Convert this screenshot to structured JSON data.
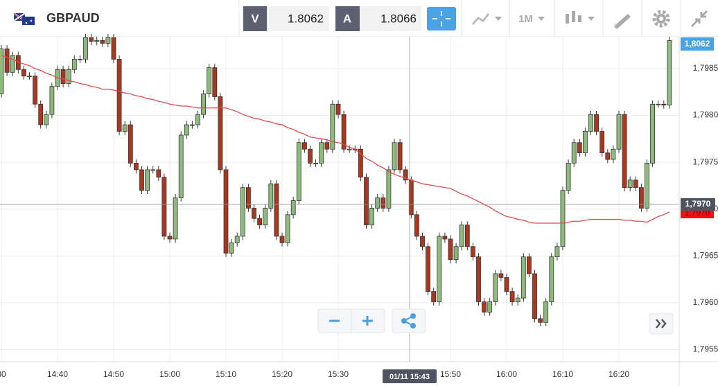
{
  "toolbar": {
    "symbol": "GBPAUD",
    "bid_tag": "V",
    "bid": "1.8062",
    "ask_tag": "A",
    "ask": "1.8066",
    "interval": "1M"
  },
  "price_tags": {
    "top": "1,8062",
    "current": "1,7970"
  },
  "chart_data": {
    "type": "candlestick",
    "categories": [
      "30",
      null,
      null,
      null,
      null,
      null,
      null,
      null,
      null,
      null,
      "14:40",
      null,
      null,
      null,
      null,
      null,
      null,
      null,
      null,
      null,
      "14:50",
      null,
      null,
      null,
      null,
      null,
      null,
      null,
      null,
      null,
      "15:00",
      null,
      null,
      null,
      null,
      null,
      null,
      null,
      null,
      null,
      "15:10",
      null,
      null,
      null,
      null,
      null,
      null,
      null,
      null,
      null,
      "15:20",
      null,
      null,
      null,
      null,
      null,
      null,
      null,
      null,
      null,
      "15:30",
      null,
      null,
      null,
      null,
      null,
      null,
      null,
      null,
      null,
      null,
      null,
      null,
      null,
      null,
      null,
      null,
      null,
      null,
      null,
      "15:50",
      null,
      null,
      null,
      null,
      null,
      null,
      null,
      null,
      null,
      "16:00",
      null,
      null,
      null,
      null,
      null,
      null,
      null,
      null,
      null,
      "16:10",
      null,
      null,
      null,
      null,
      null,
      null,
      null,
      null,
      null,
      "16:20",
      null,
      null,
      null,
      null,
      null,
      null,
      null,
      null,
      null
    ],
    "open": [
      1.79823,
      1.79871,
      1.79846,
      1.79864,
      1.79849,
      1.79842,
      1.79842,
      1.79812,
      1.7979,
      1.79801,
      1.79831,
      1.79849,
      1.79834,
      1.79849,
      1.7986,
      1.7986,
      1.79883,
      1.79879,
      1.7988,
      1.79877,
      1.79883,
      1.7986,
      1.79783,
      1.7979,
      1.79749,
      1.79742,
      1.7972,
      1.79742,
      1.79742,
      1.79734,
      1.79671,
      1.79668,
      1.79712,
      1.79779,
      1.7979,
      1.7979,
      1.79801,
      1.79823,
      1.79851,
      1.7982,
      1.79742,
      1.79653,
      1.79664,
      1.79671,
      1.79723,
      1.79701,
      1.7969,
      1.79683,
      1.79701,
      1.79727,
      1.79671,
      1.79664,
      1.79694,
      1.79709,
      1.79771,
      1.79764,
      1.79749,
      1.79749,
      1.79771,
      1.79764,
      1.79812,
      1.79801,
      1.79764,
      1.79764,
      1.79764,
      1.79734,
      1.79683,
      1.79701,
      1.79712,
      1.79701,
      1.79742,
      1.79771,
      1.79742,
      1.79731,
      1.79694,
      1.79671,
      1.7966,
      1.79612,
      1.79601,
      1.79671,
      1.79668,
      1.79646,
      1.7966,
      1.79683,
      1.7966,
      1.79649,
      1.79601,
      1.7959,
      1.79601,
      1.79631,
      1.79627,
      1.79612,
      1.79601,
      1.79605,
      1.79649,
      1.79631,
      1.79583,
      1.79579,
      1.79601,
      1.79649,
      1.7966,
      1.7972,
      1.79749,
      1.79771,
      1.7976,
      1.79783,
      1.79801,
      1.79783,
      1.7976,
      1.79753,
      1.79764,
      1.79801,
      1.79723,
      1.79731,
      1.79723,
      1.79701,
      1.79749,
      1.79812,
      1.79812,
      1.79811
    ],
    "high": [
      1.79875,
      1.79875,
      1.79868,
      1.79868,
      1.79853,
      1.79846,
      1.79846,
      1.79816,
      1.79805,
      1.79835,
      1.79853,
      1.79853,
      1.79853,
      1.79864,
      1.79864,
      1.79887,
      1.79887,
      1.79884,
      1.79884,
      1.79887,
      1.79887,
      1.79864,
      1.79794,
      1.79794,
      1.79753,
      1.79746,
      1.79746,
      1.79746,
      1.79746,
      1.79738,
      1.79675,
      1.79716,
      1.79783,
      1.79794,
      1.79794,
      1.79805,
      1.79827,
      1.79855,
      1.79855,
      1.79824,
      1.79746,
      1.79668,
      1.79675,
      1.79727,
      1.79727,
      1.79705,
      1.79694,
      1.79705,
      1.79731,
      1.79731,
      1.79675,
      1.79698,
      1.79713,
      1.79775,
      1.79775,
      1.79768,
      1.79753,
      1.79775,
      1.79775,
      1.79816,
      1.79816,
      1.79805,
      1.79768,
      1.79768,
      1.79768,
      1.79738,
      1.79705,
      1.79716,
      1.79716,
      1.79746,
      1.79775,
      1.79775,
      1.79746,
      1.79735,
      1.79698,
      1.79675,
      1.79664,
      1.79616,
      1.79675,
      1.79675,
      1.79672,
      1.79664,
      1.79687,
      1.79687,
      1.79664,
      1.79653,
      1.79605,
      1.79605,
      1.79635,
      1.79635,
      1.79631,
      1.79616,
      1.79609,
      1.79653,
      1.79653,
      1.79635,
      1.79587,
      1.79605,
      1.79653,
      1.79664,
      1.79724,
      1.79753,
      1.79775,
      1.79775,
      1.79787,
      1.79805,
      1.79805,
      1.79787,
      1.79764,
      1.79768,
      1.79805,
      1.79805,
      1.79735,
      1.79735,
      1.79727,
      1.79753,
      1.79816,
      1.79816,
      1.79816,
      1.79884
    ],
    "low": [
      1.79819,
      1.79842,
      1.79842,
      1.79845,
      1.79838,
      1.79838,
      1.79808,
      1.79786,
      1.79786,
      1.79797,
      1.79827,
      1.7983,
      1.7983,
      1.79845,
      1.79856,
      1.79856,
      1.79875,
      1.79875,
      1.79873,
      1.79873,
      1.79856,
      1.79779,
      1.79779,
      1.79745,
      1.79738,
      1.79716,
      1.79716,
      1.79738,
      1.7973,
      1.79667,
      1.79664,
      1.79664,
      1.79708,
      1.79775,
      1.79786,
      1.79786,
      1.79797,
      1.79819,
      1.79816,
      1.79738,
      1.79649,
      1.79649,
      1.7966,
      1.79667,
      1.79697,
      1.79686,
      1.79679,
      1.79679,
      1.79697,
      1.79667,
      1.7966,
      1.7966,
      1.7969,
      1.79705,
      1.7976,
      1.79745,
      1.79745,
      1.79745,
      1.7976,
      1.7976,
      1.79797,
      1.7976,
      1.7976,
      1.7976,
      1.7973,
      1.79679,
      1.79679,
      1.79697,
      1.79697,
      1.79697,
      1.79738,
      1.79738,
      1.79727,
      1.7969,
      1.79667,
      1.79656,
      1.79608,
      1.79597,
      1.79597,
      1.79664,
      1.79642,
      1.79642,
      1.79656,
      1.79656,
      1.79645,
      1.79597,
      1.79586,
      1.79586,
      1.79597,
      1.79623,
      1.79608,
      1.79597,
      1.79597,
      1.79601,
      1.79627,
      1.79579,
      1.79575,
      1.79575,
      1.79597,
      1.79645,
      1.79656,
      1.79716,
      1.79745,
      1.79756,
      1.79756,
      1.79779,
      1.79779,
      1.79756,
      1.79749,
      1.79749,
      1.7976,
      1.79719,
      1.79719,
      1.79719,
      1.79697,
      1.79697,
      1.79745,
      1.79808,
      1.79807,
      1.79807
    ],
    "close": [
      1.79871,
      1.79846,
      1.79864,
      1.79849,
      1.79842,
      1.79842,
      1.79812,
      1.7979,
      1.79801,
      1.79831,
      1.79849,
      1.79834,
      1.79849,
      1.7986,
      1.7986,
      1.79883,
      1.79879,
      1.7988,
      1.79877,
      1.79883,
      1.7986,
      1.79783,
      1.7979,
      1.79749,
      1.79742,
      1.7972,
      1.79742,
      1.79742,
      1.79734,
      1.79671,
      1.79668,
      1.79712,
      1.79779,
      1.7979,
      1.7979,
      1.79801,
      1.79823,
      1.79851,
      1.7982,
      1.79742,
      1.79653,
      1.79664,
      1.79671,
      1.79723,
      1.79701,
      1.7969,
      1.79683,
      1.79701,
      1.79727,
      1.79671,
      1.79664,
      1.79694,
      1.79709,
      1.79771,
      1.79764,
      1.79749,
      1.79749,
      1.79771,
      1.79764,
      1.79812,
      1.79801,
      1.79764,
      1.79764,
      1.79764,
      1.79734,
      1.79683,
      1.79701,
      1.79712,
      1.79701,
      1.79742,
      1.79771,
      1.79742,
      1.79731,
      1.79694,
      1.79671,
      1.7966,
      1.79612,
      1.79601,
      1.79671,
      1.79668,
      1.79646,
      1.7966,
      1.79683,
      1.7966,
      1.79649,
      1.79601,
      1.7959,
      1.79601,
      1.79631,
      1.79627,
      1.79612,
      1.79601,
      1.79605,
      1.79649,
      1.79631,
      1.79583,
      1.79579,
      1.79601,
      1.79649,
      1.7966,
      1.7972,
      1.79749,
      1.79771,
      1.7976,
      1.79783,
      1.79801,
      1.79783,
      1.7976,
      1.79753,
      1.79764,
      1.79801,
      1.79723,
      1.79731,
      1.79723,
      1.79701,
      1.79749,
      1.79812,
      1.79812,
      1.79811,
      1.7988
    ],
    "up_color": "#8dbb7c",
    "down_color": "#a8381f",
    "overlay": {
      "type": "line",
      "color": "#e8494a",
      "values": [
        1.79864,
        1.79862,
        1.7986,
        1.79857,
        1.79855,
        1.79853,
        1.7985,
        1.79848,
        1.79845,
        1.79843,
        1.7984,
        1.79839,
        1.79837,
        1.79836,
        1.79834,
        1.79833,
        1.79831,
        1.7983,
        1.79828,
        1.79828,
        1.79827,
        1.79826,
        1.79824,
        1.79823,
        1.79821,
        1.7982,
        1.79818,
        1.79817,
        1.79815,
        1.79814,
        1.79812,
        1.79811,
        1.7981,
        1.7981,
        1.79809,
        1.79808,
        1.79808,
        1.79808,
        1.79808,
        1.79808,
        1.79808,
        1.79806,
        1.79804,
        1.79801,
        1.79799,
        1.79797,
        1.79796,
        1.79794,
        1.79793,
        1.79791,
        1.7979,
        1.79787,
        1.79785,
        1.79782,
        1.7978,
        1.79777,
        1.79776,
        1.79775,
        1.79774,
        1.79772,
        1.79771,
        1.79769,
        1.79766,
        1.79764,
        1.79759,
        1.79754,
        1.79751,
        1.79747,
        1.79744,
        1.7974,
        1.79737,
        1.79735,
        1.79733,
        1.79731,
        1.79729,
        1.79727,
        1.79726,
        1.79725,
        1.79724,
        1.79723,
        1.79722,
        1.79719,
        1.79716,
        1.79714,
        1.79711,
        1.79708,
        1.79705,
        1.79702,
        1.79698,
        1.79695,
        1.79692,
        1.79691,
        1.79689,
        1.79688,
        1.79686,
        1.79685,
        1.79685,
        1.79685,
        1.79685,
        1.79685,
        1.79685,
        1.79686,
        1.79687,
        1.79687,
        1.79688,
        1.79689,
        1.79689,
        1.79689,
        1.79689,
        1.79689,
        1.79689,
        1.79688,
        1.79688,
        1.79687,
        1.79687,
        1.79686,
        1.79689,
        1.79692,
        1.79694,
        1.79697
      ]
    },
    "ylim": [
      1.79537,
      1.79884
    ],
    "yticks": [
      {
        "value": 1.7955,
        "label": "1,7955"
      },
      {
        "value": 1.796,
        "label": "1,7960"
      },
      {
        "value": 1.7965,
        "label": "1,7965"
      },
      {
        "value": 1.797,
        "label": "1,7970"
      },
      {
        "value": 1.7975,
        "label": "1,7975"
      },
      {
        "value": 1.798,
        "label": "1,7980"
      },
      {
        "value": 1.7985,
        "label": "1,7985"
      }
    ],
    "grid": true,
    "crosshair": {
      "x_label": "01/11 15:43",
      "y_label": "1,7970",
      "y": 1.79705
    }
  }
}
